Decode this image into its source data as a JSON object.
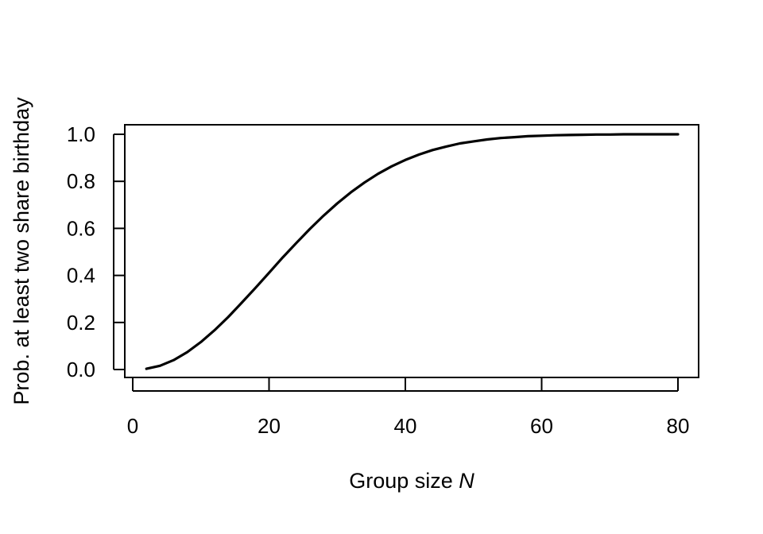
{
  "chart_data": {
    "type": "line",
    "xlabel": "Group size",
    "xlabel_var": "N",
    "ylabel": "Prob. at least two share birthday",
    "xlim": [
      0,
      80
    ],
    "ylim": [
      0,
      1
    ],
    "x_ticks": [
      0,
      20,
      40,
      60,
      80
    ],
    "y_ticks": [
      0,
      0.2,
      0.4,
      0.6,
      0.8,
      1.0
    ],
    "x_tick_labels": [
      "0",
      "20",
      "40",
      "60",
      "80"
    ],
    "y_tick_labels": [
      "0.0",
      "0.2",
      "0.4",
      "0.6",
      "0.8",
      "1.0"
    ],
    "grid": false,
    "series": [
      {
        "color": "#000000",
        "x": [
          2,
          4,
          6,
          8,
          10,
          12,
          14,
          16,
          18,
          20,
          22,
          24,
          26,
          28,
          30,
          32,
          34,
          36,
          38,
          40,
          42,
          44,
          46,
          48,
          50,
          52,
          54,
          56,
          58,
          60,
          62,
          64,
          66,
          68,
          70,
          72,
          74,
          76,
          78,
          80
        ],
        "y": [
          0.003,
          0.016,
          0.04,
          0.074,
          0.117,
          0.167,
          0.223,
          0.284,
          0.347,
          0.411,
          0.476,
          0.538,
          0.598,
          0.654,
          0.706,
          0.753,
          0.795,
          0.832,
          0.864,
          0.891,
          0.914,
          0.933,
          0.948,
          0.961,
          0.97,
          0.978,
          0.984,
          0.988,
          0.992,
          0.994,
          0.996,
          0.997,
          0.998,
          0.999,
          0.999,
          1.0,
          1.0,
          1.0,
          1.0,
          1.0
        ]
      }
    ]
  }
}
